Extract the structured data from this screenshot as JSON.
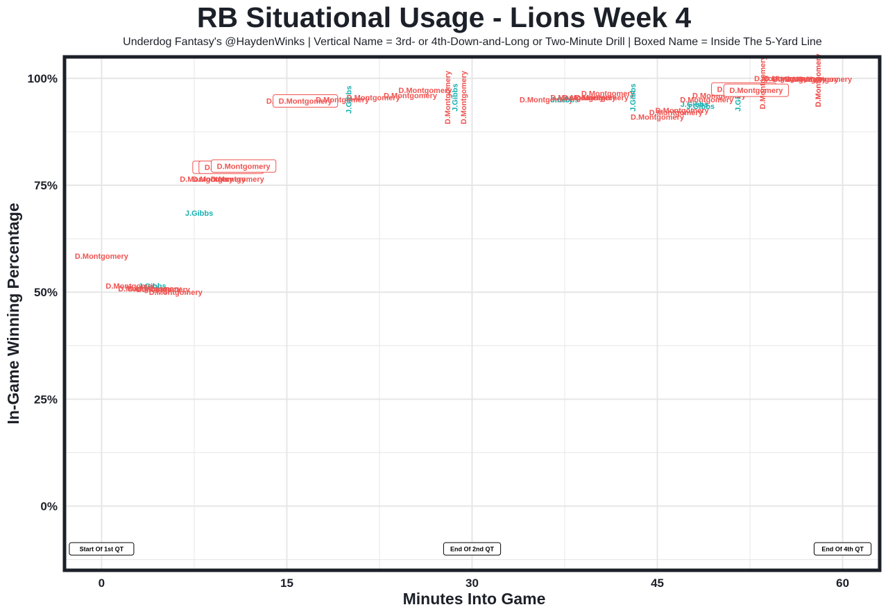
{
  "chart_data": {
    "type": "scatter",
    "title": "RB Situational Usage - Lions Week 4",
    "subtitle": "Underdog Fantasy's @HaydenWinks | Vertical Name = 3rd- or 4th-Down-and-Long or Two-Minute Drill | Boxed Name = Inside The 5-Yard Line",
    "xlabel": "Minutes Into Game",
    "ylabel": "In-Game Winning Percentage",
    "xlim": [
      -3,
      63
    ],
    "ylim": [
      -15,
      105
    ],
    "x_ticks": [
      0,
      15,
      30,
      45,
      60
    ],
    "x_tick_labels": [
      "0",
      "15",
      "30",
      "45",
      "60"
    ],
    "y_ticks": [
      0,
      25,
      50,
      75,
      100
    ],
    "y_tick_labels": [
      "0%",
      "25%",
      "50%",
      "75%",
      "100%"
    ],
    "grid": true,
    "colors": {
      "D.Montgomery": "#ef5350",
      "J.Gibbs": "#17b0b0",
      "frame": "#1c2028",
      "grid": "#e6e6e6"
    },
    "quarter_labels": [
      {
        "x": 0,
        "text": "Start Of 1st QT"
      },
      {
        "x": 30,
        "text": "End Of 2nd QT"
      },
      {
        "x": 60,
        "text": "End Of 4th QT"
      }
    ],
    "points": [
      {
        "x": 0.0,
        "y": 58.5,
        "player": "D.Montgomery"
      },
      {
        "x": 2.5,
        "y": 51.5,
        "player": "D.Montgomery"
      },
      {
        "x": 3.5,
        "y": 50.8,
        "player": "D.Montgomery"
      },
      {
        "x": 4.1,
        "y": 51.5,
        "player": "J.Gibbs"
      },
      {
        "x": 4.3,
        "y": 50.8,
        "player": "D.Montgomery"
      },
      {
        "x": 5.0,
        "y": 50.7,
        "player": "D.Montgomery"
      },
      {
        "x": 6.0,
        "y": 50.0,
        "player": "D.Montgomery"
      },
      {
        "x": 7.9,
        "y": 68.5,
        "player": "J.Gibbs"
      },
      {
        "x": 8.5,
        "y": 76.5,
        "player": "D.Montgomery"
      },
      {
        "x": 9.5,
        "y": 76.5,
        "player": "D.Montgomery"
      },
      {
        "x": 11.0,
        "y": 76.5,
        "player": "D.Montgomery"
      },
      {
        "x": 10.0,
        "y": 79.2,
        "player": "D.Montgomery",
        "boxed": true
      },
      {
        "x": 10.5,
        "y": 79.2,
        "player": "D.Montgomery",
        "boxed": true
      },
      {
        "x": 11.5,
        "y": 79.5,
        "player": "D.Montgomery",
        "boxed": true
      },
      {
        "x": 15.5,
        "y": 94.7,
        "player": "D.Montgomery"
      },
      {
        "x": 16.5,
        "y": 94.7,
        "player": "D.Montgomery",
        "boxed": true
      },
      {
        "x": 19.5,
        "y": 95.0,
        "player": "D.Montgomery"
      },
      {
        "x": 20.0,
        "y": 95.0,
        "player": "J.Gibbs",
        "vertical": true
      },
      {
        "x": 22.0,
        "y": 95.5,
        "player": "D.Montgomery"
      },
      {
        "x": 25.0,
        "y": 96.0,
        "player": "D.Montgomery"
      },
      {
        "x": 26.2,
        "y": 97.2,
        "player": "D.Montgomery"
      },
      {
        "x": 28.0,
        "y": 95.5,
        "player": "D.Montgomery",
        "vertical": true
      },
      {
        "x": 28.6,
        "y": 95.5,
        "player": "J.Gibbs",
        "vertical": true
      },
      {
        "x": 29.3,
        "y": 95.5,
        "player": "D.Montgomery",
        "vertical": true
      },
      {
        "x": 36.0,
        "y": 95.0,
        "player": "D.Montgomery"
      },
      {
        "x": 37.5,
        "y": 95.0,
        "player": "J.Gibbs"
      },
      {
        "x": 38.5,
        "y": 95.5,
        "player": "D.Montgomery"
      },
      {
        "x": 39.5,
        "y": 95.5,
        "player": "D.Montgomery"
      },
      {
        "x": 40.5,
        "y": 95.5,
        "player": "D.Montgomery"
      },
      {
        "x": 41.0,
        "y": 96.5,
        "player": "D.Montgomery"
      },
      {
        "x": 43.0,
        "y": 95.5,
        "player": "J.Gibbs",
        "vertical": true
      },
      {
        "x": 45.0,
        "y": 91.0,
        "player": "D.Montgomery"
      },
      {
        "x": 46.5,
        "y": 92.0,
        "player": "D.Montgomery"
      },
      {
        "x": 47.0,
        "y": 92.5,
        "player": "D.Montgomery"
      },
      {
        "x": 48.0,
        "y": 94.0,
        "player": "J.Gibbs"
      },
      {
        "x": 48.5,
        "y": 93.5,
        "player": "J.Gibbs"
      },
      {
        "x": 49.0,
        "y": 95.0,
        "player": "D.Montgomery"
      },
      {
        "x": 50.0,
        "y": 96.0,
        "player": "D.Montgomery"
      },
      {
        "x": 51.5,
        "y": 96.5,
        "player": "D.Montgomery"
      },
      {
        "x": 51.5,
        "y": 95.5,
        "player": "J.Gibbs",
        "vertical": true
      },
      {
        "x": 52.0,
        "y": 97.5,
        "player": "D.Montgomery",
        "boxed": true
      },
      {
        "x": 53.0,
        "y": 97.2,
        "player": "D.Montgomery",
        "boxed": true
      },
      {
        "x": 53.5,
        "y": 99.0,
        "player": "D.Montgomery",
        "vertical": true
      },
      {
        "x": 55.0,
        "y": 100.0,
        "player": "D.Montgomery"
      },
      {
        "x": 55.8,
        "y": 100.0,
        "player": "D.Montgomery"
      },
      {
        "x": 56.5,
        "y": 99.8,
        "player": "D.Montgomery"
      },
      {
        "x": 57.5,
        "y": 99.8,
        "player": "D.Montgomery"
      },
      {
        "x": 58.0,
        "y": 99.5,
        "player": "D.Montgomery",
        "vertical": true
      },
      {
        "x": 58.0,
        "y": 99.5,
        "player": "D.Montgomery",
        "vertical": true
      },
      {
        "x": 58.6,
        "y": 99.8,
        "player": "D.Montgomery"
      }
    ]
  }
}
